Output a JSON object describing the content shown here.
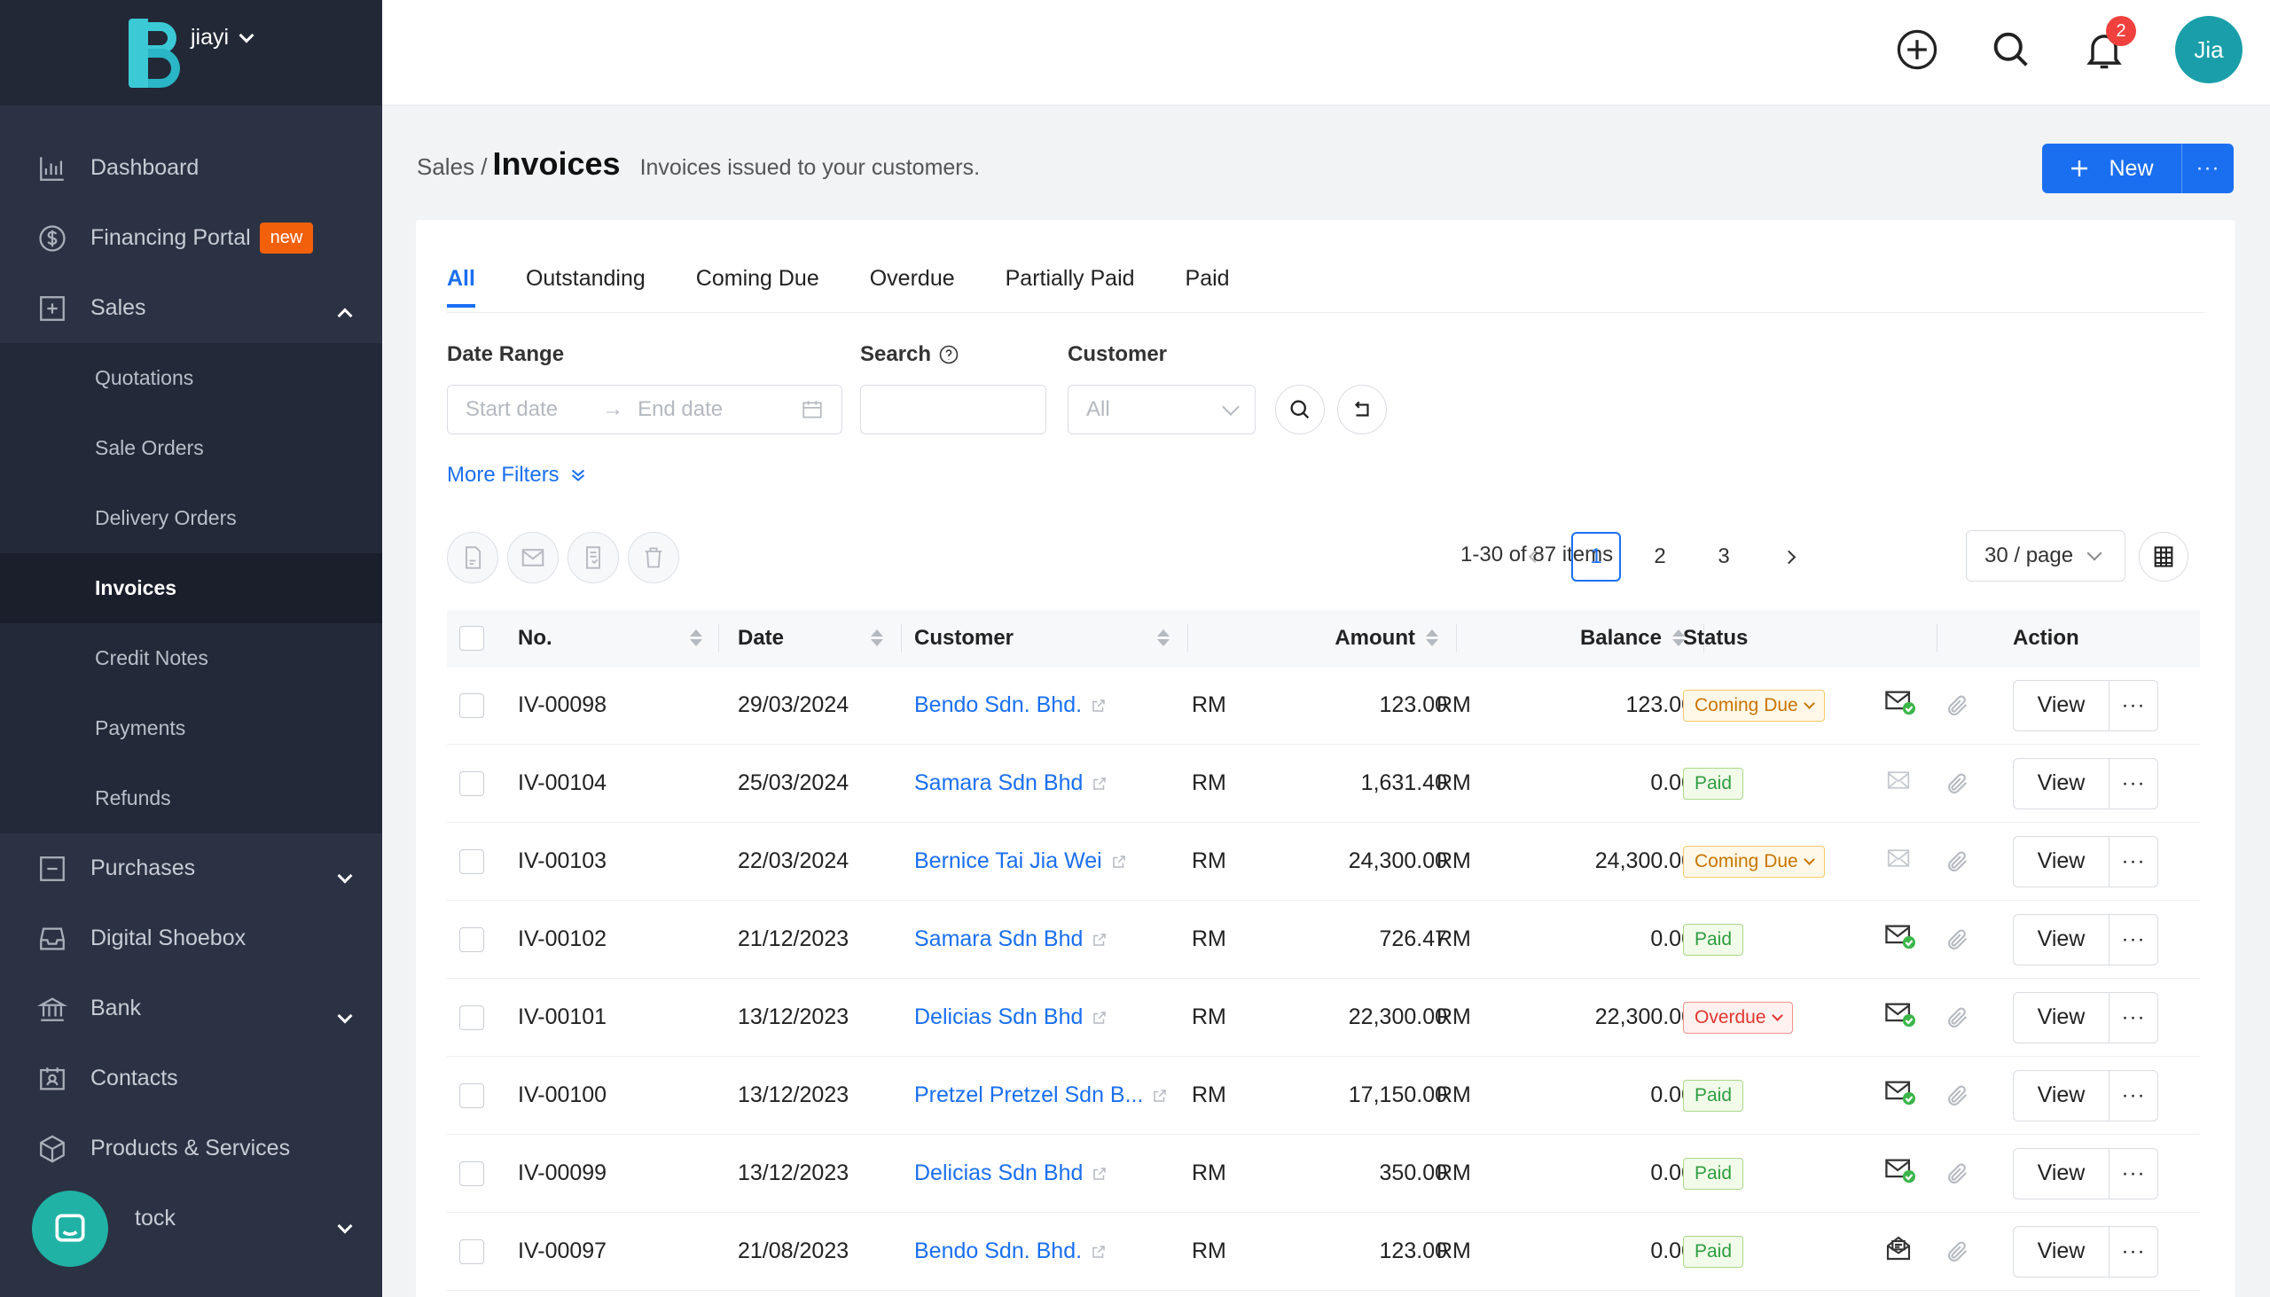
{
  "org": {
    "name": "jiayi"
  },
  "sidebar": {
    "items": [
      {
        "label": "Dashboard",
        "icon": "chart-bar-icon"
      },
      {
        "label": "Financing Portal",
        "icon": "dollar-circle-icon",
        "badge": "new"
      },
      {
        "label": "Sales",
        "icon": "plus-square-icon"
      },
      {
        "label": "Purchases",
        "icon": "minus-square-icon"
      },
      {
        "label": "Digital Shoebox",
        "icon": "inbox-icon"
      },
      {
        "label": "Bank",
        "icon": "bank-icon"
      },
      {
        "label": "Contacts",
        "icon": "contacts-icon"
      },
      {
        "label": "Products & Services",
        "icon": "cube-icon"
      },
      {
        "label": "Stock",
        "visible_label": "tock",
        "icon": "stock-icon"
      }
    ],
    "sales_sub": [
      "Quotations",
      "Sale Orders",
      "Delivery Orders",
      "Invoices",
      "Credit Notes",
      "Payments",
      "Refunds"
    ]
  },
  "topbar": {
    "notifications": "2",
    "avatar": "Jia"
  },
  "header": {
    "breadcrumb": "Sales /",
    "title": "Invoices",
    "subtitle": "Invoices issued to your customers.",
    "new_label": "New",
    "more_label": "···"
  },
  "tabs": [
    "All",
    "Outstanding",
    "Coming Due",
    "Overdue",
    "Partially Paid",
    "Paid"
  ],
  "filters": {
    "date_range_label": "Date Range",
    "start_placeholder": "Start date",
    "end_placeholder": "End date",
    "search_label": "Search",
    "customer_label": "Customer",
    "customer_value": "All",
    "more_filters": "More Filters"
  },
  "pagination": {
    "info": "1-30 of 87 items",
    "pages": [
      "1",
      "2",
      "3"
    ],
    "per_page": "30 / page"
  },
  "table": {
    "headers": {
      "no": "No.",
      "date": "Date",
      "customer": "Customer",
      "amount": "Amount",
      "balance": "Balance",
      "status": "Status",
      "action": "Action"
    },
    "view_label": "View",
    "dots_label": "···",
    "rows": [
      {
        "no": "IV-00098",
        "date": "29/03/2024",
        "customer": "Bendo Sdn. Bhd.",
        "cur": "RM",
        "amount": "123.00",
        "bcur": "RM",
        "balance": "123.00",
        "status": "Coming Due",
        "kind": "due",
        "mail": "sent"
      },
      {
        "no": "IV-00104",
        "date": "25/03/2024",
        "customer": "Samara Sdn Bhd",
        "cur": "RM",
        "amount": "1,631.40",
        "bcur": "RM",
        "balance": "0.00",
        "status": "Paid",
        "kind": "paid",
        "mail": "none"
      },
      {
        "no": "IV-00103",
        "date": "22/03/2024",
        "customer": "Bernice Tai Jia Wei",
        "cur": "RM",
        "amount": "24,300.00",
        "bcur": "RM",
        "balance": "24,300.00",
        "status": "Coming Due",
        "kind": "due",
        "mail": "none"
      },
      {
        "no": "IV-00102",
        "date": "21/12/2023",
        "customer": "Samara Sdn Bhd",
        "cur": "RM",
        "amount": "726.47",
        "bcur": "RM",
        "balance": "0.00",
        "status": "Paid",
        "kind": "paid",
        "mail": "sent"
      },
      {
        "no": "IV-00101",
        "date": "13/12/2023",
        "customer": "Delicias Sdn Bhd",
        "cur": "RM",
        "amount": "22,300.00",
        "bcur": "RM",
        "balance": "22,300.00",
        "status": "Overdue",
        "kind": "over",
        "mail": "sent"
      },
      {
        "no": "IV-00100",
        "date": "13/12/2023",
        "customer": "Pretzel Pretzel Sdn B...",
        "cur": "RM",
        "amount": "17,150.00",
        "bcur": "RM",
        "balance": "0.00",
        "status": "Paid",
        "kind": "paid",
        "mail": "sent"
      },
      {
        "no": "IV-00099",
        "date": "13/12/2023",
        "customer": "Delicias Sdn Bhd",
        "cur": "RM",
        "amount": "350.00",
        "bcur": "RM",
        "balance": "0.00",
        "status": "Paid",
        "kind": "paid",
        "mail": "sent"
      },
      {
        "no": "IV-00097",
        "date": "21/08/2023",
        "customer": "Bendo Sdn. Bhd.",
        "cur": "RM",
        "amount": "123.00",
        "bcur": "RM",
        "balance": "0.00",
        "status": "Paid",
        "kind": "paid",
        "mail": "opened"
      }
    ]
  },
  "colors": {
    "primary": "#1a6ff0",
    "sidebar": "#2b3243",
    "badge": "#f2600c",
    "avatar": "#1a9faa"
  }
}
